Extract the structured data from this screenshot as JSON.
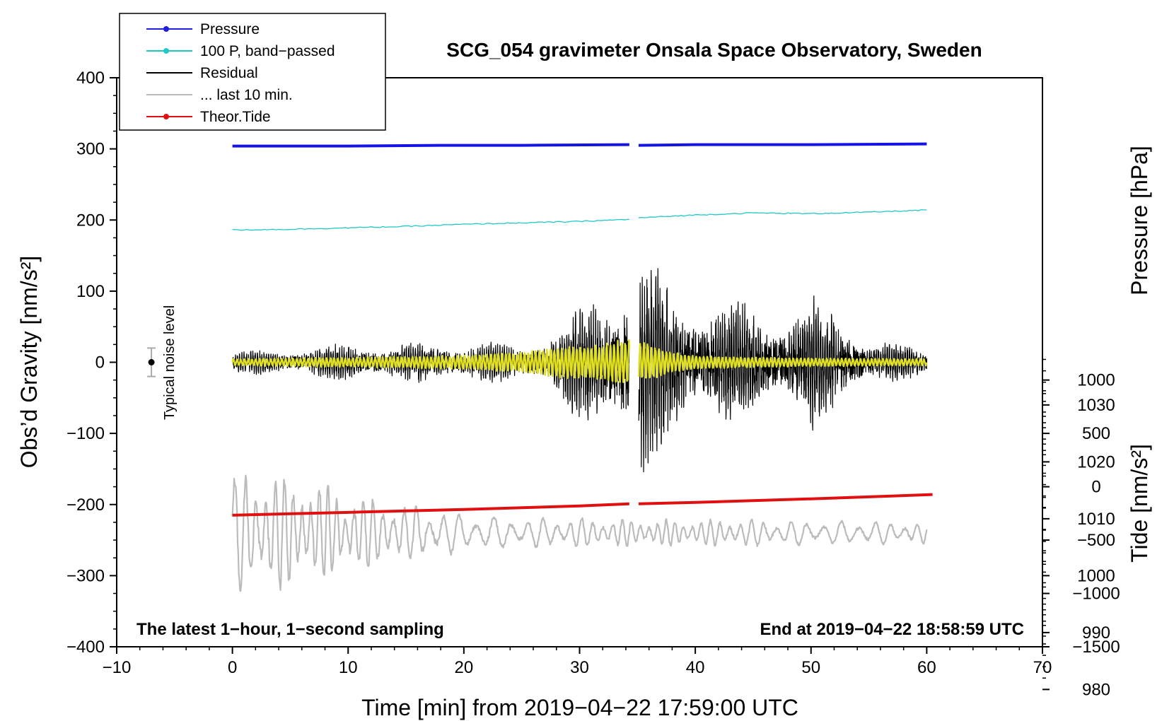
{
  "chart_data": {
    "type": "line",
    "title": "SCG_054 gravimeter Onsala Space Observatory, Sweden",
    "xlabel": "Time [min] from 2019−04−22 17:59:00 UTC",
    "ylabel_left": "Obs’d Gravity [nm/s²]",
    "ylabel_right_top": "Pressure [hPa]",
    "ylabel_right_bottom": "Tide [nm/s²]",
    "xlim": [
      -10,
      70
    ],
    "ylim": [
      -400,
      400
    ],
    "x_ticks": [
      -10,
      0,
      10,
      20,
      30,
      40,
      50,
      60,
      70
    ],
    "x_tick_labels": [
      "−10",
      "0",
      "10",
      "20",
      "30",
      "40",
      "50",
      "60",
      "70"
    ],
    "y_ticks": [
      -400,
      -300,
      -200,
      -100,
      0,
      100,
      200,
      300,
      400
    ],
    "y_tick_labels": [
      "−400",
      "−300",
      "−200",
      "−100",
      "0",
      "100",
      "200",
      "300",
      "400"
    ],
    "pressure_axis": {
      "range_on_gravity": [
        -400,
        400
      ],
      "hPa_at_gravity_0": 1037.5,
      "hPa_per_gravity_unit": 0.125,
      "ticks": [
        980,
        990,
        1000,
        1010,
        1020,
        1030
      ],
      "tick_labels": [
        "980",
        "990",
        "1000",
        "1010",
        "1020",
        "1030"
      ]
    },
    "tide_axis": {
      "tide_at_gravity_neg400": -1500,
      "nm_per_gravity_unit": 6.6667,
      "ticks": [
        -1500,
        -1000,
        -500,
        0,
        500,
        1000
      ],
      "tick_labels": [
        "−1500",
        "−1000",
        "−500",
        "0",
        "500",
        "1000"
      ]
    },
    "legend": [
      {
        "label": "Pressure",
        "color": "#1f1fe0",
        "marker": true
      },
      {
        "label": "100 P, band−passed",
        "color": "#20c8c8",
        "marker": true
      },
      {
        "label": "Residual",
        "color": "#000000",
        "marker": false
      },
      {
        "label": "... last 10 min.",
        "color": "#bbbbbb",
        "marker": false
      },
      {
        "label": "Theor.Tide",
        "color": "#e01010",
        "marker": true
      }
    ],
    "annotations": {
      "bottom_left": "The latest 1−hour, 1−second sampling",
      "bottom_right": "End at 2019−04−22 18:58:59 UTC",
      "noise_label": "Typical noise level"
    },
    "noise_bar": {
      "x": -7,
      "y": 0,
      "err": 20
    },
    "gap": [
      34.3,
      35.1
    ],
    "series": [
      {
        "name": "Pressure",
        "color": "#1414e6",
        "unit": "gravity-axis",
        "x": [
          0,
          10,
          18,
          25,
          34.3,
          35.1,
          40,
          50,
          60
        ],
        "y": [
          304,
          304,
          305,
          305,
          306,
          305,
          306,
          306,
          307
        ]
      },
      {
        "name": "100 P, band−passed",
        "color": "#20c8c8",
        "unit": "gravity-axis",
        "x": [
          0,
          5,
          10,
          15,
          20,
          25,
          30,
          34.3,
          35.1,
          40,
          45,
          50,
          55,
          60
        ],
        "y": [
          186,
          187,
          189,
          191,
          194,
          196,
          198,
          201,
          203,
          207,
          210,
          209,
          211,
          214
        ]
      },
      {
        "name": "Theor.Tide",
        "color": "#e01010",
        "unit": "gravity-axis",
        "x": [
          0,
          10,
          20,
          30,
          34.3,
          35.1,
          40,
          50,
          60.5
        ],
        "y": [
          -215,
          -211,
          -207,
          -202,
          -199,
          -199,
          -197,
          -192,
          -186
        ]
      },
      {
        "name": "Residual",
        "color": "#000000",
        "envelope_t": [
          0,
          5,
          9,
          10,
          13,
          15,
          20,
          25,
          28,
          30,
          32,
          33.5,
          34.3,
          35.1,
          36,
          37,
          38,
          40,
          42,
          44,
          46,
          48,
          50,
          52,
          55,
          58,
          60
        ],
        "envelope_a": [
          15,
          20,
          25,
          30,
          25,
          28,
          30,
          25,
          50,
          80,
          110,
          135,
          140,
          185,
          150,
          125,
          120,
          95,
          90,
          85,
          70,
          75,
          95,
          75,
          35,
          25,
          20
        ]
      },
      {
        "name": "band−passed residual",
        "color": "#e0e020",
        "envelope_t": [
          0,
          10,
          20,
          25,
          28,
          32,
          33.5,
          34.3,
          35.1,
          36.5,
          38,
          40,
          45,
          50,
          60
        ],
        "envelope_a": [
          4,
          6,
          8,
          12,
          18,
          22,
          28,
          28,
          25,
          20,
          12,
          8,
          6,
          5,
          4
        ]
      },
      {
        "name": "... last 10 min.",
        "color": "#bbbbbb",
        "base": -240,
        "envelope_t": [
          0,
          3,
          6,
          9,
          11,
          14,
          17,
          20,
          25,
          30,
          35,
          40,
          45,
          50,
          55,
          60
        ],
        "envelope_a": [
          80,
          80,
          75,
          60,
          50,
          40,
          35,
          25,
          20,
          20,
          18,
          18,
          18,
          16,
          16,
          14
        ]
      }
    ]
  }
}
